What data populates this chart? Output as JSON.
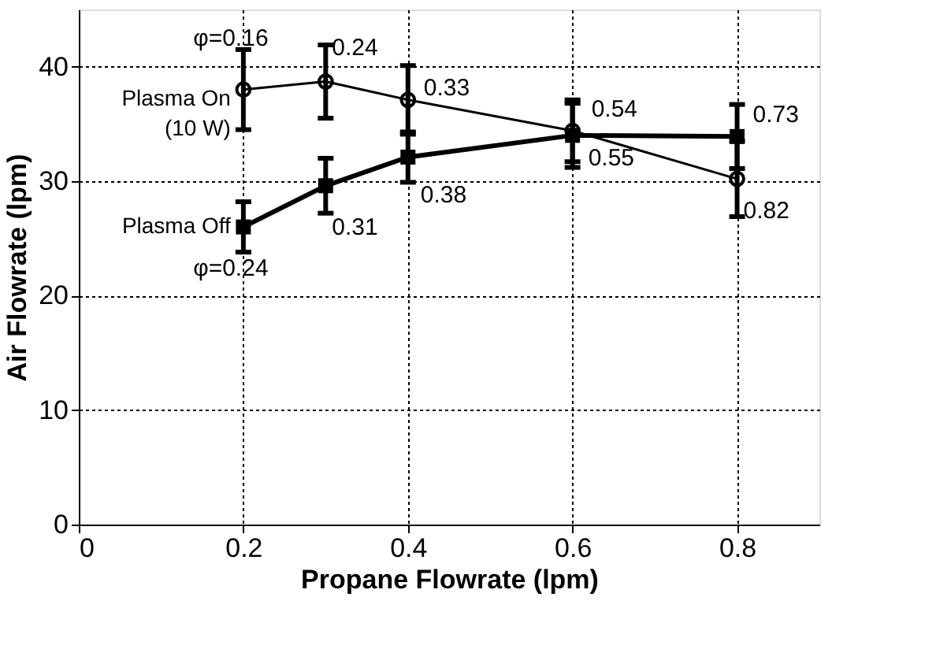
{
  "chart_data": {
    "type": "line",
    "xlabel": "Propane Flowrate (lpm)",
    "ylabel": "Air Flowrate (lpm)",
    "xlim": [
      0,
      0.9
    ],
    "xticks": [
      0,
      0.2,
      0.4,
      0.6,
      0.8
    ],
    "ylim": [
      0,
      45
    ],
    "yticks": [
      0,
      10,
      20,
      30,
      40
    ],
    "grid": true,
    "legend": "left",
    "series": [
      {
        "name": "Plasma On (10 W)",
        "color": "#000000",
        "marker": "circle",
        "x": [
          0.2,
          0.3,
          0.4,
          0.6,
          0.8
        ],
        "values": [
          38.0,
          38.7,
          37.1,
          34.4,
          30.2
        ],
        "errors": [
          3.5,
          3.2,
          3.0,
          2.7,
          3.3
        ]
      },
      {
        "name": "Plasma Off",
        "color": "#000000",
        "marker": "square",
        "x": [
          0.2,
          0.3,
          0.4,
          0.6,
          0.8
        ],
        "values": [
          26.0,
          29.6,
          32.1,
          34.0,
          33.9
        ],
        "errors": [
          2.2,
          2.4,
          2.2,
          2.8,
          2.8
        ]
      }
    ],
    "annotations": [
      {
        "text": "φ=0.16",
        "x": 0.2,
        "y": 38.0
      },
      {
        "text": "0.24",
        "x": 0.3,
        "y": 38.7
      },
      {
        "text": "0.33",
        "x": 0.4,
        "y": 37.1
      },
      {
        "text": "0.54",
        "x": 0.6,
        "y": 34.4
      },
      {
        "text": "0.82",
        "x": 0.8,
        "y": 30.2
      },
      {
        "text": "φ=0.24",
        "x": 0.2,
        "y": 26.0
      },
      {
        "text": "0.31",
        "x": 0.3,
        "y": 29.6
      },
      {
        "text": "0.38",
        "x": 0.4,
        "y": 32.1
      },
      {
        "text": "0.55",
        "x": 0.6,
        "y": 34.0
      },
      {
        "text": "0.73",
        "x": 0.8,
        "y": 33.9
      }
    ]
  }
}
